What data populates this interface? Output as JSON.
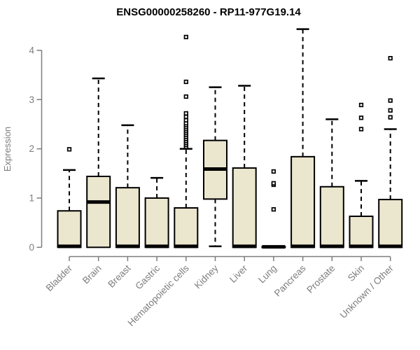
{
  "chart_data": {
    "type": "boxplot",
    "title": "ENSG00000258260 - RP11-977G19.14",
    "ylabel": "Expression",
    "xlabel": "",
    "ylim": [
      0,
      4.5
    ],
    "yticks": [
      0,
      1,
      2,
      3,
      4
    ],
    "grid": false,
    "legend": "none",
    "categories": [
      "Bladder",
      "Brain",
      "Breast",
      "Gastric",
      "Hematopoietic cells",
      "Kidney",
      "Liver",
      "Lung",
      "Pancreas",
      "Prostate",
      "Skin",
      "Unknown / Other"
    ],
    "series": [
      {
        "name": "Bladder",
        "q1": 0,
        "median": 0.02,
        "q3": 0.74,
        "whisker_low": 0,
        "whisker_high": 1.57,
        "outliers": [
          1.99
        ]
      },
      {
        "name": "Brain",
        "q1": 0,
        "median": 0.92,
        "q3": 1.44,
        "whisker_low": 0,
        "whisker_high": 3.43,
        "outliers": []
      },
      {
        "name": "Breast",
        "q1": 0,
        "median": 0.02,
        "q3": 1.21,
        "whisker_low": 0,
        "whisker_high": 2.48,
        "outliers": []
      },
      {
        "name": "Gastric",
        "q1": 0,
        "median": 0.02,
        "q3": 1.0,
        "whisker_low": 0,
        "whisker_high": 1.41,
        "outliers": []
      },
      {
        "name": "Hematopoietic cells",
        "q1": 0,
        "median": 0.02,
        "q3": 0.8,
        "whisker_low": 0,
        "whisker_high": 2.0,
        "outliers": [
          2.04,
          2.08,
          2.12,
          2.16,
          2.2,
          2.24,
          2.28,
          2.32,
          2.36,
          2.4,
          2.44,
          2.48,
          2.52,
          2.58,
          2.65,
          2.72,
          3.06,
          3.36,
          4.27
        ]
      },
      {
        "name": "Kidney",
        "q1": 0.98,
        "median": 1.59,
        "q3": 2.17,
        "whisker_low": 0.02,
        "whisker_high": 3.25,
        "outliers": []
      },
      {
        "name": "Liver",
        "q1": 0,
        "median": 0.02,
        "q3": 1.61,
        "whisker_low": 0,
        "whisker_high": 3.28,
        "outliers": []
      },
      {
        "name": "Lung",
        "q1": 0,
        "median": 0.01,
        "q3": 0.01,
        "whisker_low": 0,
        "whisker_high": 0.01,
        "outliers": [
          0.77,
          1.27,
          1.3,
          1.54
        ]
      },
      {
        "name": "Pancreas",
        "q1": 0,
        "median": 0.02,
        "q3": 1.84,
        "whisker_low": 0,
        "whisker_high": 4.43,
        "outliers": []
      },
      {
        "name": "Prostate",
        "q1": 0,
        "median": 0.02,
        "q3": 1.23,
        "whisker_low": 0,
        "whisker_high": 2.6,
        "outliers": []
      },
      {
        "name": "Skin",
        "q1": 0,
        "median": 0.02,
        "q3": 0.63,
        "whisker_low": 0,
        "whisker_high": 1.35,
        "outliers": [
          2.4,
          2.63,
          2.89
        ]
      },
      {
        "name": "Unknown / Other",
        "q1": 0,
        "median": 0.02,
        "q3": 0.97,
        "whisker_low": 0,
        "whisker_high": 2.4,
        "outliers": [
          2.64,
          2.78,
          2.98,
          3.84
        ]
      }
    ],
    "colors": {
      "box_fill": "#EBE6CE",
      "box_border": "#000000",
      "median": "#000000",
      "whisker": "#000000",
      "outlier_stroke": "#000000",
      "outlier_fill": "#ffffff",
      "axis": "#7d7d7d",
      "tick_label": "#7d7d7d",
      "title": "#000000",
      "background": "#ffffff"
    }
  }
}
